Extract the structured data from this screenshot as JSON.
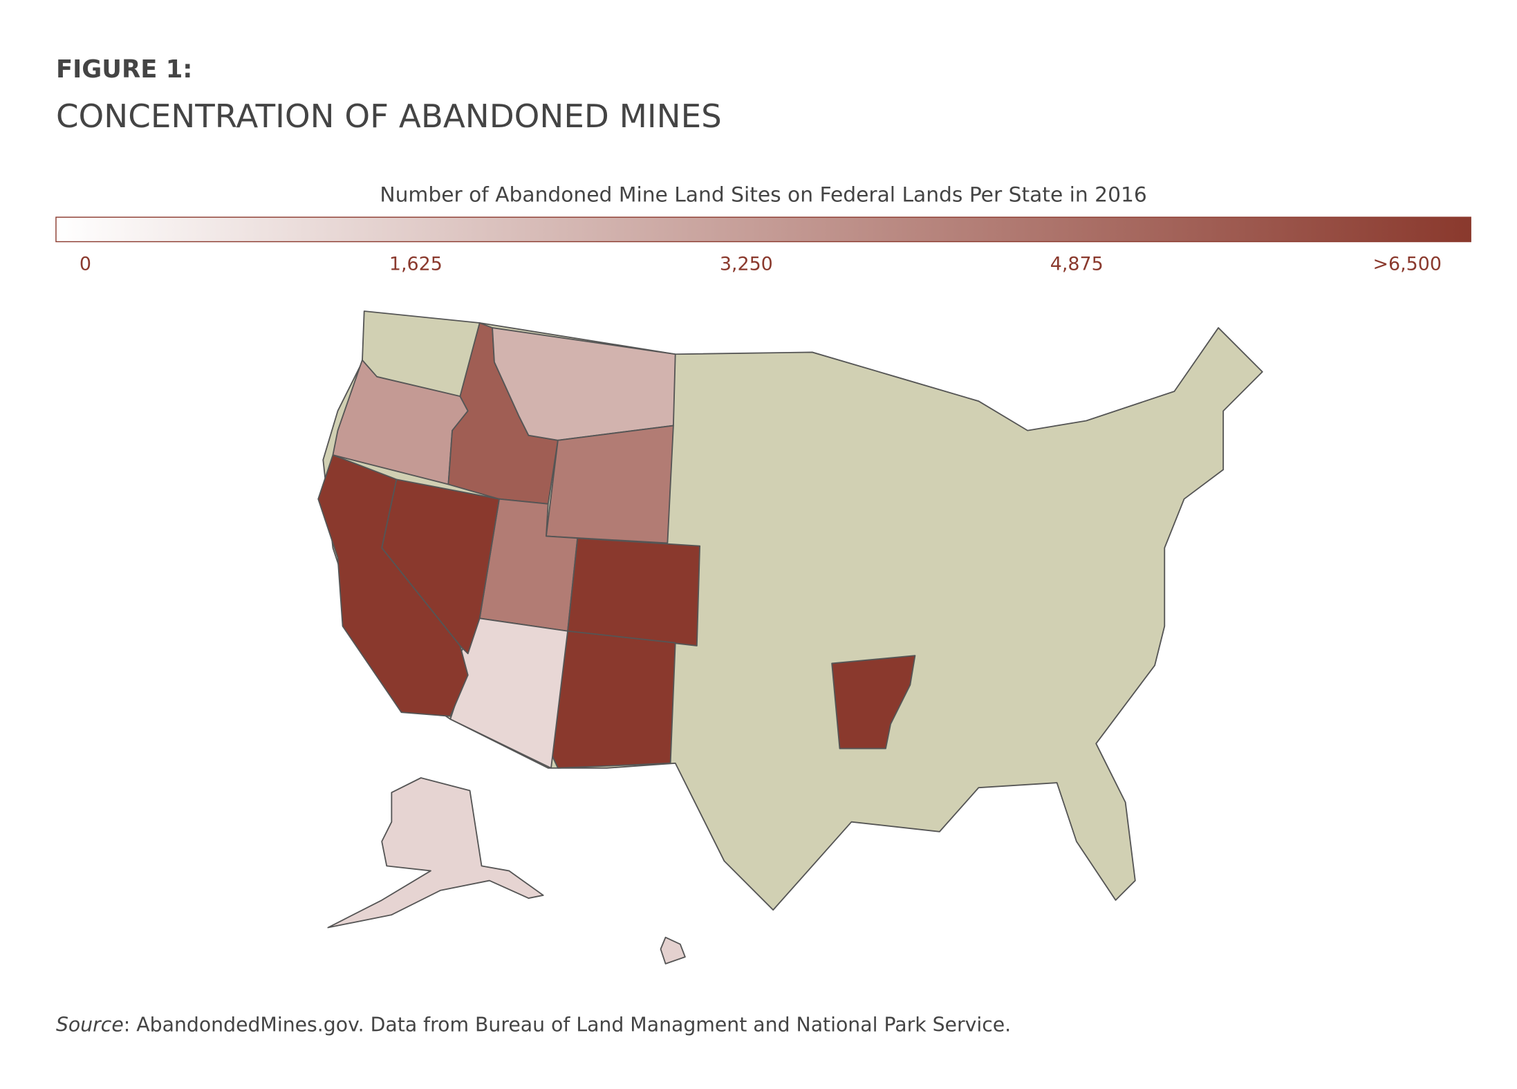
{
  "chart_data": {
    "type": "choropleth",
    "figure_label": "FIGURE 1:",
    "title": "CONCENTRATION OF ABANDONED MINES",
    "legend_title": "Number of Abandoned Mine Land Sites on Federal Lands Per State in 2016",
    "color_range": [
      "#ffffff",
      "#8a392d"
    ],
    "no_data_color": "#d1d0b3",
    "clim": [
      0,
      6500
    ],
    "ticks": [
      0,
      {
        "value": 1625,
        "label": "1,625"
      },
      {
        "value": 3250,
        "label": "3,250"
      },
      {
        "value": 4875,
        "label": "4,875"
      },
      {
        "value": 6500,
        "label": ">6,500"
      }
    ],
    "values": [
      3300,
      5300,
      2500,
      4300,
      4300,
      6500,
      6500,
      1300,
      6500,
      6500,
      6500,
      1400,
      1500
    ],
    "source_label": "Source",
    "source_text": ": AbandondedMines.gov. Data from Bureau of Land Managment and National Park Service."
  }
}
